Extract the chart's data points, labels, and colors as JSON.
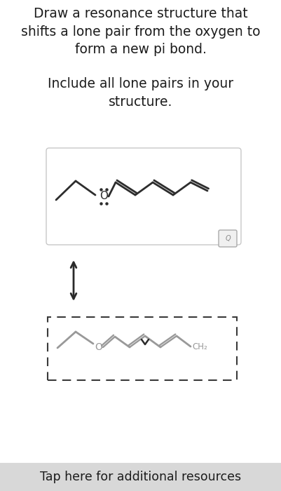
{
  "title_text": "Draw a resonance structure that\nshifts a lone pair from the oxygen to\nform a new pi bond.",
  "subtitle_text": "Include all lone pairs in your\nstructure.",
  "bg_color": "#ffffff",
  "text_color": "#1c1c1c",
  "arrow_color": "#2a2a2a",
  "mol_color": "#2d2d2d",
  "mol2_color": "#999999",
  "mol_lw": 2.0,
  "bottom_bar_color": "#d8d8d8",
  "bottom_text": "Tap here for additional resources",
  "dashed_box_color": "#3a3a3a",
  "box_edge_color": "#c8c8c8",
  "mag_edge_color": "#aaaaaa",
  "mag_bg_color": "#f0f0f0"
}
